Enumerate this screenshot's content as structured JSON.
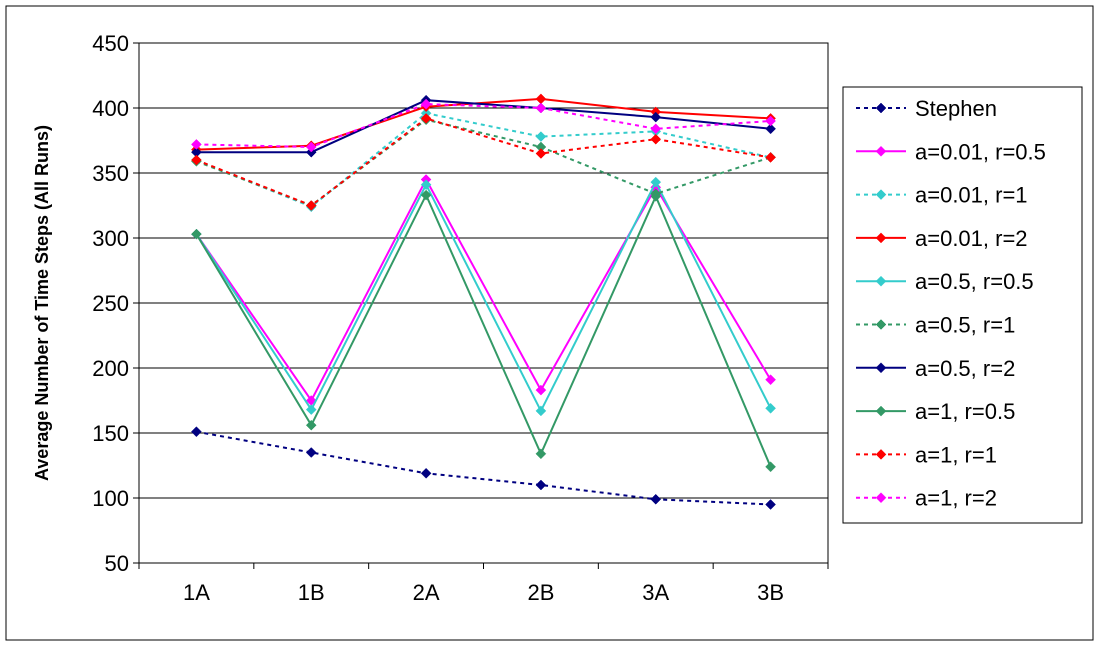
{
  "chart_data": {
    "type": "line",
    "title": "",
    "xlabel": "",
    "ylabel": "Average Number of Time Steps (All Runs)",
    "categories": [
      "1A",
      "1B",
      "2A",
      "2B",
      "3A",
      "3B"
    ],
    "ylim": [
      50,
      450
    ],
    "yticks": [
      50,
      100,
      150,
      200,
      250,
      300,
      350,
      400,
      450
    ],
    "grid": "horizontal",
    "legend_position": "right",
    "series": [
      {
        "name": "Stephen",
        "color": "#000080",
        "dashed": true,
        "values": [
          151,
          135,
          119,
          110,
          99,
          95
        ]
      },
      {
        "name": "a=0.01, r=0.5",
        "color": "#FF00FF",
        "dashed": false,
        "values": [
          303,
          175,
          345,
          183,
          339,
          191
        ]
      },
      {
        "name": "a=0.01, r=1",
        "color": "#33CCCC",
        "dashed": true,
        "values": [
          360,
          324,
          396,
          378,
          382,
          362
        ]
      },
      {
        "name": "a=0.01, r=2",
        "color": "#FF0000",
        "dashed": false,
        "values": [
          368,
          371,
          401,
          407,
          397,
          392
        ]
      },
      {
        "name": "a=0.5, r=0.5",
        "color": "#33CCCC",
        "dashed": false,
        "values": [
          303,
          168,
          341,
          167,
          343,
          169
        ]
      },
      {
        "name": "a=0.5, r=1",
        "color": "#339966",
        "dashed": true,
        "values": [
          359,
          325,
          391,
          370,
          334,
          362
        ]
      },
      {
        "name": "a=0.5, r=2",
        "color": "#000080",
        "dashed": false,
        "values": [
          366,
          366,
          406,
          400,
          393,
          384
        ]
      },
      {
        "name": "a=1, r=0.5",
        "color": "#339966",
        "dashed": false,
        "values": [
          303,
          156,
          333,
          134,
          332,
          124
        ]
      },
      {
        "name": "a=1, r=1",
        "color": "#FF0000",
        "dashed": true,
        "values": [
          360,
          325,
          392,
          365,
          376,
          362
        ]
      },
      {
        "name": "a=1, r=2",
        "color": "#FF00FF",
        "dashed": true,
        "values": [
          372,
          370,
          403,
          400,
          384,
          390
        ]
      }
    ]
  }
}
